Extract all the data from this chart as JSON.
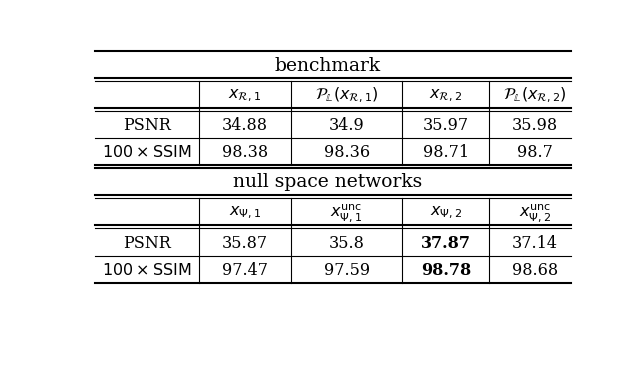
{
  "section1_header": "benchmark",
  "section2_header": "null space networks",
  "bench_col_headers": [
    "$x_{\\mathcal{R},1}$",
    "$\\mathcal{P}_{\\mathbb{L}}(x_{\\mathcal{R},1})$",
    "$x_{\\mathcal{R},2}$",
    "$\\mathcal{P}_{\\mathbb{L}}(x_{\\mathcal{R},2})$"
  ],
  "nsn_col_headers": [
    "$x_{\\Psi,1}$",
    "$x_{\\Psi,1}^{\\mathrm{unc}}$",
    "$x_{\\Psi,2}$",
    "$x_{\\Psi,2}^{\\mathrm{unc}}$"
  ],
  "bench_data": [
    [
      "34.88",
      "34.9",
      "35.97",
      "35.98"
    ],
    [
      "98.38",
      "98.36",
      "98.71",
      "98.7"
    ]
  ],
  "nsn_data": [
    [
      "35.87",
      "35.8",
      "37.87",
      "37.14"
    ],
    [
      "97.47",
      "97.59",
      "98.78",
      "98.68"
    ]
  ],
  "nsn_bold": [
    [
      false,
      false,
      true,
      false
    ],
    [
      false,
      false,
      true,
      false
    ]
  ],
  "bg_color": "#ffffff",
  "text_color": "#000000",
  "fontsize": 11.5,
  "header_fontsize": 13.5
}
